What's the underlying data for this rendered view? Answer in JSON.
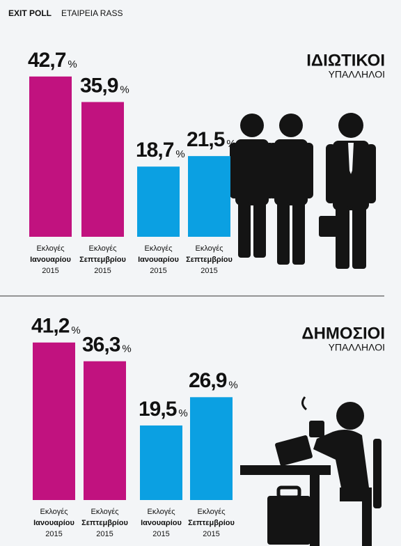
{
  "header": {
    "bold": "EXIT POLL",
    "text": "ΕΤΑΙΡΕΙΑ RASS"
  },
  "chart_data": [
    {
      "type": "bar",
      "title": "ΙΔΙΩΤΙΚΟΙ",
      "subtitle": "ΥΠΑΛΛΗΛΟΙ",
      "categories": [
        [
          "Εκλογές",
          "Ιανουαρίου",
          "2015"
        ],
        [
          "Εκλογές",
          "Σεπτεμβρίου",
          "2015"
        ],
        [
          "Εκλογές",
          "Ιανουαρίου",
          "2015"
        ],
        [
          "Εκλογές",
          "Σεπτεμβρίου",
          "2015"
        ]
      ],
      "values": [
        42.7,
        35.9,
        18.7,
        21.5
      ],
      "value_labels": [
        "42,7",
        "35,9",
        "18,7",
        "21,5"
      ],
      "unit": "%",
      "colors": [
        "#c1127f",
        "#c1127f",
        "#0ba0e2",
        "#0ba0e2"
      ]
    },
    {
      "type": "bar",
      "title": "ΔΗΜΟΣΙΟΙ",
      "subtitle": "ΥΠΑΛΛΗΛΟΙ",
      "categories": [
        [
          "Εκλογές",
          "Ιανουαρίου",
          "2015"
        ],
        [
          "Εκλογές",
          "Σεπτεμβρίου",
          "2015"
        ],
        [
          "Εκλογές",
          "Ιανουαρίου",
          "2015"
        ],
        [
          "Εκλογές",
          "Σεπτεμβρίου",
          "2015"
        ]
      ],
      "values": [
        41.2,
        36.3,
        19.5,
        26.9
      ],
      "value_labels": [
        "41,2",
        "36,3",
        "19,5",
        "26,9"
      ],
      "unit": "%",
      "colors": [
        "#c1127f",
        "#c1127f",
        "#0ba0e2",
        "#0ba0e2"
      ]
    }
  ]
}
